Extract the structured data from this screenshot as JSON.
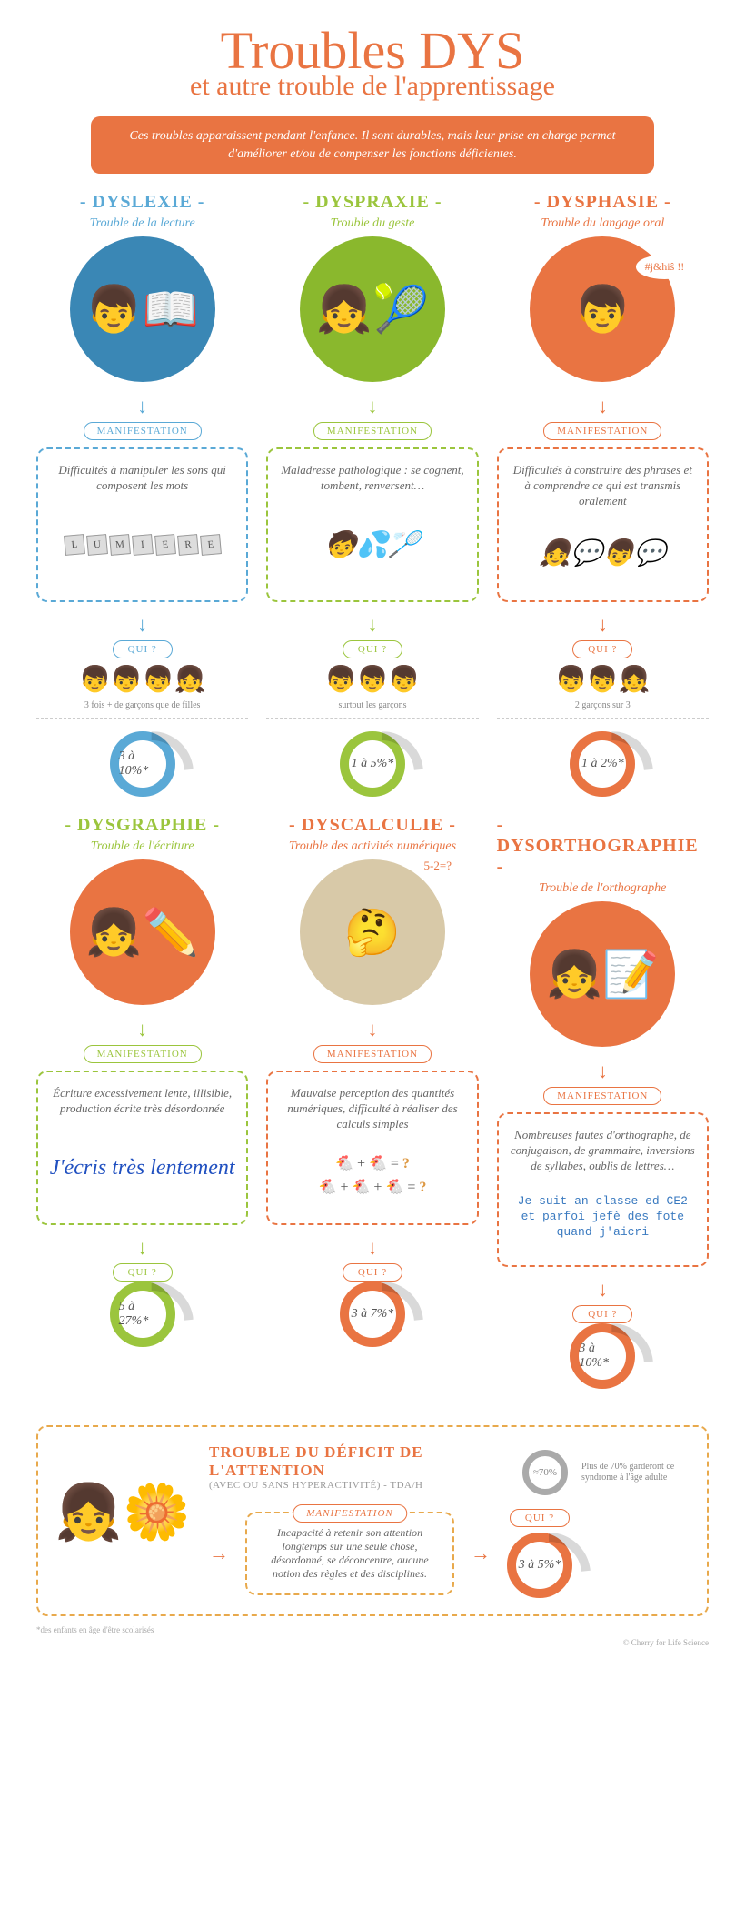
{
  "header": {
    "title": "Troubles DYS",
    "subtitle": "et autre trouble de l'apprentissage",
    "title_color": "#e97442",
    "intro": "Ces troubles apparaissent pendant l'enfance. Il sont durables, mais leur prise en charge permet d'améliorer et/ou de compenser les fonctions déficientes.",
    "intro_bg": "#e97442"
  },
  "labels": {
    "manifestation": "MANIFESTATION",
    "qui": "QUI ?"
  },
  "troubles": [
    {
      "name": "DYSLEXIE",
      "tag": "Trouble de la lecture",
      "color": "#5aa9d6",
      "circle_bg": "#3a87b5",
      "emoji": "👦📖",
      "manif": "Difficultés à manipuler les sons qui composent les mots",
      "illus_type": "blocks",
      "blocks": [
        "L",
        "U",
        "M",
        "I",
        "E",
        "R",
        "E"
      ],
      "ratio": "3 fois + de garçons que de filles",
      "kids": "👦👦👦👧",
      "stat": "3 à 10%*"
    },
    {
      "name": "DYSPRAXIE",
      "tag": "Trouble du geste",
      "color": "#9bc53d",
      "circle_bg": "#8ab82d",
      "emoji": "👧🎾",
      "manif": "Maladresse pathologique : se cognent, tombent, renversent…",
      "illus_type": "emoji",
      "illus_emoji": "🧒💦🏸",
      "ratio": "surtout les garçons",
      "kids": "👦👦👦",
      "stat": "1 à 5%*"
    },
    {
      "name": "DYSPHASIE",
      "tag": "Trouble du langage oral",
      "color": "#e97442",
      "circle_bg": "#e97442",
      "emoji": "👦",
      "speech": "#j&hiŝ !!",
      "manif": "Difficultés à construire des phrases et à comprendre ce qui est transmis oralement",
      "illus_type": "emoji",
      "illus_emoji": "👧💬👦💬",
      "ratio": "2 garçons sur 3",
      "kids": "👦👦👧",
      "stat": "1 à 2%*"
    },
    {
      "name": "DYSGRAPHIE",
      "tag": "Trouble de l'écriture",
      "color": "#9bc53d",
      "circle_bg": "#e97442",
      "emoji": "👧✏️",
      "manif": "Écriture excessivement lente, illisible, production écrite très désordonnée",
      "illus_type": "hand",
      "hand": "J'écris très lentement",
      "ratio": "",
      "kids": "",
      "stat": "5 à 27%*"
    },
    {
      "name": "DYSCALCULIE",
      "tag": "Trouble des activités numériques",
      "color": "#e97442",
      "circle_bg": "#d8c9a8",
      "emoji": "🤔",
      "thought": "5-2=?",
      "manif": "Mauvaise perception des quantités numériques, difficulté à réaliser des calculs simples",
      "illus_type": "eq",
      "ratio": "",
      "kids": "",
      "stat": "3 à 7%*"
    },
    {
      "name": "DYSORTHOGRAPHIE",
      "tag": "Trouble de l'orthographe",
      "color": "#e97442",
      "circle_bg": "#e97442",
      "emoji": "👧📝",
      "manif": "Nombreuses fautes d'orthographe, de conjugaison, de grammaire, inversions de syllabes, oublis de lettres…",
      "illus_type": "mistake",
      "mistake": "Je suit an classe ed CE2 et parfoi jefè des fote quand j'aicri",
      "ratio": "",
      "kids": "",
      "stat": "3 à 10%*"
    }
  ],
  "footer": {
    "title": "TROUBLE DU DÉFICIT DE L'ATTENTION",
    "subtitle": "(AVEC OU SANS HYPERACTIVITÉ) - TDA/H",
    "color": "#e97442",
    "emoji": "👧🌼",
    "stat_badge": "≈70%",
    "stat_text": "Plus de 70% garderont ce syndrome à l'âge adulte",
    "manif": "Incapacité à retenir son attention longtemps sur une seule chose, désordonné, se déconcentre, aucune notion des règles et des disciplines.",
    "stat": "3 à 5%*"
  },
  "note": "*des enfants en âge d'être scolarisés",
  "credit": "© Cherry for Life Science"
}
